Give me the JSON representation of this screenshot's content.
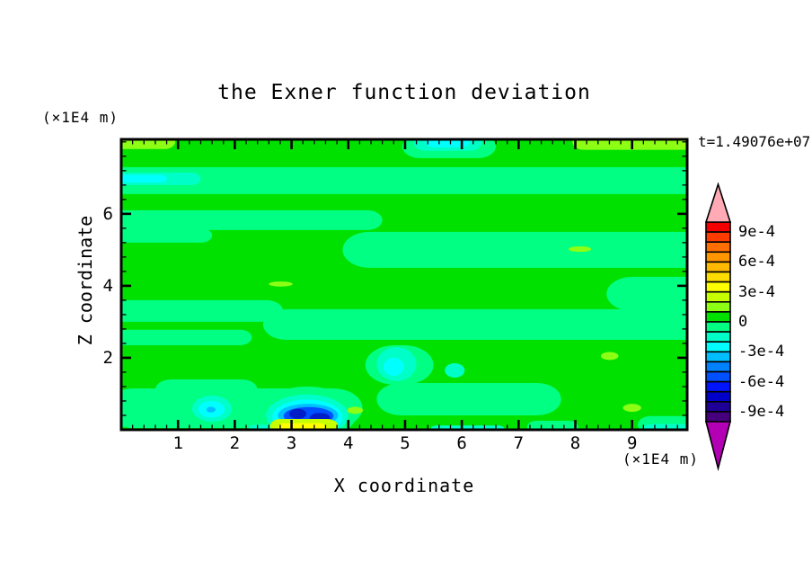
{
  "chart_data": {
    "type": "filled_contour",
    "title": "the Exner function deviation",
    "xlabel": "X coordinate",
    "ylabel": "Z coordinate",
    "x_unit_label": "(×1E4 m)",
    "y_unit_label": "(×1E4 m)",
    "timestamp": "t=1.49076e+07",
    "x_range": [
      0,
      9.97
    ],
    "z_range": [
      0,
      8.07
    ],
    "x_ticks_major": [
      1,
      2,
      3,
      4,
      5,
      6,
      7,
      8,
      9
    ],
    "x_tick_minor_step": 0.2,
    "z_ticks_major": [
      2,
      4,
      6
    ],
    "z_tick_minor_step": 0.4,
    "grid": false,
    "colorbar": {
      "max": 0.001,
      "min": -0.001,
      "step": 0.0001,
      "colors_top_to_bottom": [
        "#F50000",
        "#FF3C00",
        "#FF6E00",
        "#FF9600",
        "#FFB900",
        "#FFDC00",
        "#FFFF00",
        "#C8FF00",
        "#8CFF14",
        "#00E100",
        "#00FF82",
        "#00FFC8",
        "#00FFFF",
        "#00BEFF",
        "#0082FF",
        "#0050FF",
        "#0014FF",
        "#0000C8",
        "#1E0096",
        "#46007D"
      ],
      "over_color": "#FFAAB4",
      "under_color": "#B400B4",
      "labels": [
        {
          "text": "9e-4",
          "boundary": 1
        },
        {
          "text": "6e-4",
          "boundary": 4
        },
        {
          "text": "3e-4",
          "boundary": 7
        },
        {
          "text": "0",
          "boundary": 10
        },
        {
          "text": "-3e-4",
          "boundary": 13
        },
        {
          "text": "-6e-4",
          "boundary": 16
        },
        {
          "text": "-9e-4",
          "boundary": 19
        }
      ]
    },
    "field_colors": {
      "bg": "#00E100",
      "mint": "#00FF82",
      "turq": "#00FFC8",
      "cyan": "#00FFFF",
      "sky": "#00BEFF",
      "blue": "#0050FF",
      "core": "#001EC8",
      "chart": "#8CFF14",
      "chart2": "#C8FF00",
      "yellow": "#FFFF00"
    },
    "field_features": [
      [
        "r",
        "mint",
        -0.3,
        10.4,
        6.55,
        7.3
      ],
      [
        "r",
        "turq",
        -0.3,
        1.4,
        6.8,
        7.15
      ],
      [
        "r",
        "cyan",
        -0.3,
        0.8,
        6.87,
        7.08
      ],
      [
        "r",
        "mint",
        4.95,
        6.6,
        7.55,
        8.2
      ],
      [
        "r",
        "turq",
        5.15,
        6.35,
        7.75,
        8.2
      ],
      [
        "r",
        "cyan",
        5.35,
        6.15,
        7.85,
        8.2
      ],
      [
        "r",
        "mint",
        -0.3,
        4.6,
        5.55,
        6.1
      ],
      [
        "r",
        "mint",
        -0.3,
        1.6,
        5.2,
        5.6
      ],
      [
        "r",
        "mint",
        3.9,
        10.4,
        4.5,
        5.5
      ],
      [
        "r",
        "mint",
        8.55,
        10.4,
        3.3,
        4.25
      ],
      [
        "r",
        "mint",
        -0.3,
        2.85,
        3.0,
        3.6
      ],
      [
        "r",
        "mint",
        2.5,
        10.4,
        2.5,
        3.35
      ],
      [
        "r",
        "mint",
        -0.3,
        2.3,
        2.35,
        2.78
      ],
      [
        "r",
        "mint",
        4.3,
        5.5,
        1.25,
        2.35
      ],
      [
        "r",
        "mint",
        4.5,
        7.75,
        0.4,
        1.3
      ],
      [
        "r",
        "turq",
        4.5,
        5.2,
        1.35,
        2.3
      ],
      [
        "r",
        "cyan",
        4.62,
        4.98,
        1.5,
        2.0
      ],
      [
        "e",
        "turq",
        5.7,
        6.05,
        1.45,
        1.85
      ],
      [
        "r",
        "mint",
        -0.3,
        4.25,
        0.05,
        1.15
      ],
      [
        "r",
        "mint",
        0.6,
        2.4,
        0.82,
        1.4
      ],
      [
        "e",
        "turq",
        1.25,
        1.95,
        0.22,
        0.95
      ],
      [
        "e",
        "cyan",
        1.36,
        1.82,
        0.34,
        0.8
      ],
      [
        "e",
        "sky",
        1.5,
        1.66,
        0.48,
        0.64
      ],
      [
        "e",
        "mint",
        2.4,
        4.15,
        -0.3,
        1.2
      ],
      [
        "e",
        "turq",
        2.55,
        4.0,
        -0.2,
        0.98
      ],
      [
        "e",
        "cyan",
        2.66,
        3.9,
        -0.15,
        0.84
      ],
      [
        "e",
        "sky",
        2.76,
        3.82,
        0.08,
        0.72
      ],
      [
        "e",
        "blue",
        2.86,
        3.74,
        0.14,
        0.63
      ],
      [
        "e",
        "core",
        2.96,
        3.26,
        0.3,
        0.58
      ],
      [
        "e",
        "core",
        3.32,
        3.68,
        0.18,
        0.47
      ],
      [
        "r",
        "mint",
        7.15,
        8.05,
        -0.1,
        0.25
      ],
      [
        "r",
        "mint",
        9.1,
        10.4,
        -0.1,
        0.38
      ],
      [
        "r",
        "turq",
        2.25,
        3.0,
        -0.1,
        0.14
      ],
      [
        "r",
        "chart2",
        2.62,
        3.82,
        -0.1,
        0.3
      ],
      [
        "r",
        "yellow",
        2.76,
        3.62,
        -0.1,
        0.18
      ],
      [
        "r",
        "turq",
        5.45,
        6.75,
        -0.1,
        0.12
      ],
      [
        "r",
        "turq",
        9.2,
        10.4,
        -0.1,
        0.16
      ],
      [
        "r",
        "chart",
        -0.3,
        0.95,
        7.8,
        8.2
      ],
      [
        "r",
        "chart",
        7.95,
        10.4,
        7.78,
        8.2
      ],
      [
        "e",
        "chart",
        2.6,
        3.02,
        3.98,
        4.12
      ],
      [
        "e",
        "chart",
        7.88,
        8.28,
        4.94,
        5.1
      ],
      [
        "e",
        "chart",
        8.45,
        8.76,
        1.94,
        2.16
      ],
      [
        "e",
        "chart",
        8.84,
        9.16,
        0.5,
        0.72
      ],
      [
        "e",
        "chart",
        3.98,
        4.26,
        0.44,
        0.64
      ]
    ]
  }
}
